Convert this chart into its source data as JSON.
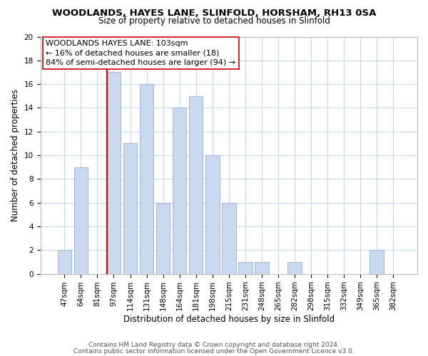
{
  "title": "WOODLANDS, HAYES LANE, SLINFOLD, HORSHAM, RH13 0SA",
  "subtitle": "Size of property relative to detached houses in Slinfold",
  "xlabel": "Distribution of detached houses by size in Slinfold",
  "ylabel": "Number of detached properties",
  "bar_labels": [
    "47sqm",
    "64sqm",
    "81sqm",
    "97sqm",
    "114sqm",
    "131sqm",
    "148sqm",
    "164sqm",
    "181sqm",
    "198sqm",
    "215sqm",
    "231sqm",
    "248sqm",
    "265sqm",
    "282sqm",
    "298sqm",
    "315sqm",
    "332sqm",
    "349sqm",
    "365sqm",
    "382sqm"
  ],
  "bar_values": [
    2,
    9,
    0,
    17,
    11,
    16,
    6,
    14,
    15,
    10,
    6,
    1,
    1,
    0,
    1,
    0,
    0,
    0,
    0,
    2,
    0
  ],
  "bar_color": "#c9d9f0",
  "bar_edge_color": "#a0b8d8",
  "vline_color": "#cc0000",
  "vline_index": 3,
  "ylim": [
    0,
    20
  ],
  "yticks": [
    0,
    2,
    4,
    6,
    8,
    10,
    12,
    14,
    16,
    18,
    20
  ],
  "annotation_line1": "WOODLANDS HAYES LANE: 103sqm",
  "annotation_line2": "← 16% of detached houses are smaller (18)",
  "annotation_line3": "84% of semi-detached houses are larger (94) →",
  "footnote1": "Contains HM Land Registry data © Crown copyright and database right 2024.",
  "footnote2": "Contains public sector information licensed under the Open Government Licence v3.0.",
  "background_color": "#ffffff",
  "grid_color": "#c8d8ec",
  "title_fontsize": 9.5,
  "subtitle_fontsize": 8.5,
  "axis_label_fontsize": 8.5,
  "tick_fontsize": 7.5,
  "annotation_fontsize": 8.0,
  "footnote_fontsize": 6.5
}
